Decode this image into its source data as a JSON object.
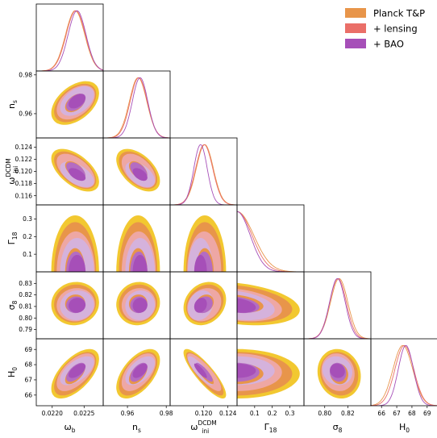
{
  "chart_data": {
    "type": "corner",
    "title": "",
    "legend": {
      "placement": "top-right",
      "entries": [
        {
          "label": "Planck T&P",
          "color": "#e8954a"
        },
        {
          "label": "+ lensing",
          "color": "#ea6f68"
        },
        {
          "label": "+ BAO",
          "color": "#a64fb8"
        }
      ]
    },
    "outer_fill_color": "#f2c830",
    "inner_fill_colors": {
      "planck": "#e8954a",
      "lensing": "#eea7a4",
      "bao": "#a64fb8"
    },
    "params": [
      {
        "key": "omega_b",
        "label": "ω",
        "sub": "b",
        "sup": "",
        "range": [
          0.02175,
          0.0228
        ],
        "ticks": [
          {
            "v": 0.022,
            "t": "0.0220"
          },
          {
            "v": 0.0225,
            "t": "0.0225"
          }
        ],
        "series": {
          "planck": {
            "mean": 0.02236,
            "sd": 0.00015
          },
          "lensing": {
            "mean": 0.02237,
            "sd": 0.00015
          },
          "bao": {
            "mean": 0.02239,
            "sd": 0.00014
          }
        }
      },
      {
        "key": "n_s",
        "label": "n",
        "sub": "s",
        "sup": "",
        "range": [
          0.9475,
          0.982
        ],
        "ticks": [
          {
            "v": 0.96,
            "t": "0.96"
          },
          {
            "v": 0.98,
            "t": "0.98"
          }
        ],
        "series": {
          "planck": {
            "mean": 0.9655,
            "sd": 0.0045
          },
          "lensing": {
            "mean": 0.9658,
            "sd": 0.0044
          },
          "bao": {
            "mean": 0.9665,
            "sd": 0.004
          }
        }
      },
      {
        "key": "omega_ini_dcdm",
        "label": "ω",
        "sub": "ini",
        "sup": "DCDM",
        "range": [
          0.1145,
          0.1255
        ],
        "ticks": [
          {
            "v": 0.116,
            "t": "0.116"
          },
          {
            "v": 0.118,
            "t": "0.118"
          },
          {
            "v": 0.12,
            "t": "0.120"
          },
          {
            "v": 0.122,
            "t": "0.122"
          },
          {
            "v": 0.124,
            "t": "0.124"
          }
        ],
        "xticks": [
          {
            "v": 0.12,
            "t": "0.120"
          },
          {
            "v": 0.124,
            "t": "0.124"
          }
        ],
        "series": {
          "planck": {
            "mean": 0.1202,
            "sd": 0.0014
          },
          "lensing": {
            "mean": 0.1201,
            "sd": 0.0014
          },
          "bao": {
            "mean": 0.1195,
            "sd": 0.0011
          }
        }
      },
      {
        "key": "Gamma_18",
        "label": "Γ",
        "sub": "18",
        "sup": "",
        "range": [
          0.0,
          0.38
        ],
        "ticks": [
          {
            "v": 0.1,
            "t": "0.1"
          },
          {
            "v": 0.2,
            "t": "0.2"
          },
          {
            "v": 0.3,
            "t": "0.3"
          }
        ],
        "series": {
          "planck": {
            "mean": 0.0,
            "sd": 0.095
          },
          "lensing": {
            "mean": 0.0,
            "sd": 0.085
          },
          "bao": {
            "mean": 0.0,
            "sd": 0.075
          }
        }
      },
      {
        "key": "sigma_8",
        "label": "σ",
        "sub": "8",
        "sup": "",
        "range": [
          0.782,
          0.84
        ],
        "ticks": [
          {
            "v": 0.79,
            "t": "0.79"
          },
          {
            "v": 0.8,
            "t": "0.80"
          },
          {
            "v": 0.81,
            "t": "0.81"
          },
          {
            "v": 0.82,
            "t": "0.82"
          },
          {
            "v": 0.83,
            "t": "0.83"
          }
        ],
        "xticks": [
          {
            "v": 0.8,
            "t": "0.80"
          },
          {
            "v": 0.82,
            "t": "0.82"
          }
        ],
        "series": {
          "planck": {
            "mean": 0.8125,
            "sd": 0.0075
          },
          "lensing": {
            "mean": 0.8115,
            "sd": 0.0072
          },
          "bao": {
            "mean": 0.811,
            "sd": 0.0068
          }
        }
      },
      {
        "key": "H_0",
        "label": "H",
        "sub": "0",
        "sup": "",
        "range": [
          65.3,
          69.7
        ],
        "ticks": [
          {
            "v": 66,
            "t": "66"
          },
          {
            "v": 67,
            "t": "67"
          },
          {
            "v": 68,
            "t": "68"
          },
          {
            "v": 69,
            "t": "69"
          }
        ],
        "xticks": [
          {
            "v": 66,
            "t": "66"
          },
          {
            "v": 67,
            "t": "67"
          },
          {
            "v": 68,
            "t": "68"
          },
          {
            "v": 69,
            "t": "69"
          }
        ],
        "series": {
          "planck": {
            "mean": 67.4,
            "sd": 0.65
          },
          "lensing": {
            "mean": 67.5,
            "sd": 0.62
          },
          "bao": {
            "mean": 67.6,
            "sd": 0.5
          }
        }
      }
    ],
    "correlations": {
      "1-0": 0.45,
      "2-0": -0.55,
      "2-1": -0.5,
      "3-0": 0.0,
      "3-1": 0.0,
      "3-2": 0.0,
      "4-0": 0.05,
      "4-1": 0.05,
      "4-2": 0.2,
      "4-3": -0.3,
      "5-0": 0.6,
      "5-1": 0.55,
      "5-2": -0.85,
      "5-3": 0.0,
      "5-4": -0.1
    }
  }
}
